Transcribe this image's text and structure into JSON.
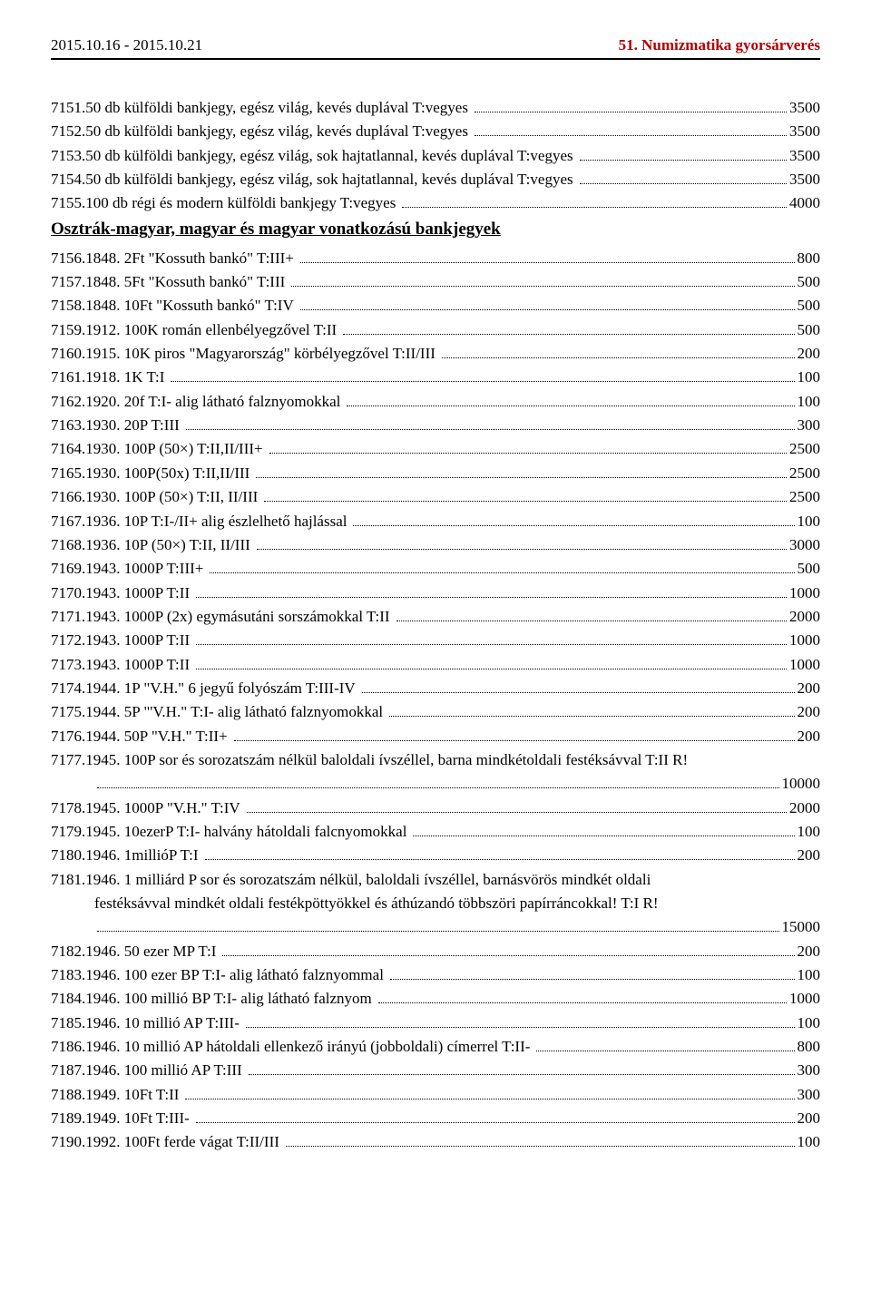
{
  "header": {
    "date_range": "2015.10.16 - 2015.10.21",
    "title": "51. Numizmatika gyorsárverés",
    "title_color": "#b00000"
  },
  "section_title": "Osztrák-magyar, magyar és magyar vonatkozású bankjegyek",
  "items_top": [
    {
      "num": "7151.",
      "desc": "50 db külföldi bankjegy, egész világ, kevés duplával T:vegyes",
      "price": "3500"
    },
    {
      "num": "7152.",
      "desc": "50 db külföldi bankjegy, egész világ, kevés duplával T:vegyes",
      "price": "3500"
    },
    {
      "num": "7153.",
      "desc": "50 db külföldi bankjegy, egész világ, sok hajtatlannal, kevés duplával T:vegyes",
      "price": "3500"
    },
    {
      "num": "7154.",
      "desc": "50 db külföldi bankjegy, egész világ, sok hajtatlannal, kevés duplával T:vegyes",
      "price": "3500"
    },
    {
      "num": "7155.",
      "desc": "100 db régi és modern külföldi bankjegy T:vegyes",
      "price": "4000"
    }
  ],
  "items_section": [
    {
      "num": "7156.",
      "desc": "1848. 2Ft \"Kossuth bankó\" T:III+",
      "price": "800"
    },
    {
      "num": "7157.",
      "desc": "1848. 5Ft \"Kossuth bankó\" T:III",
      "price": "500"
    },
    {
      "num": "7158.",
      "desc": "1848. 10Ft \"Kossuth bankó\" T:IV",
      "price": "500"
    },
    {
      "num": "7159.",
      "desc": "1912. 100K román ellenbélyegzővel T:II",
      "price": "500"
    },
    {
      "num": "7160.",
      "desc": "1915. 10K piros \"Magyarország\" körbélyegzővel T:II/III",
      "price": "200"
    },
    {
      "num": "7161.",
      "desc": "1918. 1K T:I",
      "price": "100"
    },
    {
      "num": "7162.",
      "desc": "1920. 20f T:I- alig látható falznyomokkal",
      "price": "100"
    },
    {
      "num": "7163.",
      "desc": "1930. 20P T:III",
      "price": "300"
    },
    {
      "num": "7164.",
      "desc": "1930. 100P (50×) T:II,II/III+",
      "price": "2500"
    },
    {
      "num": "7165.",
      "desc": "1930. 100P(50x) T:II,II/III",
      "price": "2500"
    },
    {
      "num": "7166.",
      "desc": "1930. 100P (50×) T:II, II/III",
      "price": "2500"
    },
    {
      "num": "7167.",
      "desc": "1936. 10P T:I-/II+ alig észlelhető hajlással",
      "price": "100"
    },
    {
      "num": "7168.",
      "desc": "1936. 10P (50×) T:II, II/III",
      "price": "3000"
    },
    {
      "num": "7169.",
      "desc": "1943. 1000P T:III+",
      "price": "500"
    },
    {
      "num": "7170.",
      "desc": "1943. 1000P T:II",
      "price": "1000"
    },
    {
      "num": "7171.",
      "desc": "1943. 1000P (2x) egymásutáni sorszámokkal T:II",
      "price": "2000"
    },
    {
      "num": "7172.",
      "desc": "1943. 1000P T:II",
      "price": "1000"
    },
    {
      "num": "7173.",
      "desc": "1943. 1000P T:II",
      "price": "1000"
    },
    {
      "num": "7174.",
      "desc": "1944. 1P \"V.H.\" 6 jegyű folyószám T:III-IV",
      "price": "200"
    },
    {
      "num": "7175.",
      "desc": "1944. 5P \"'V.H.\" T:I- alig látható falznyomokkal",
      "price": "200"
    },
    {
      "num": "7176.",
      "desc": "1944. 50P \"V.H.\" T:II+",
      "price": "200"
    },
    {
      "num": "7177.",
      "desc": "1945. 100P sor és sorozatszám nélkül baloldali ívszéllel, barna mindkétoldali festéksávval T:II R!",
      "price": "10000",
      "twoline": true
    },
    {
      "num": "7178.",
      "desc": "1945. 1000P \"V.H.\" T:IV",
      "price": "2000"
    },
    {
      "num": "7179.",
      "desc": "1945. 10ezerP T:I- halvány hátoldali falcnyomokkal",
      "price": "100"
    },
    {
      "num": "7180.",
      "desc": "1946. 1millióP T:I",
      "price": "200"
    },
    {
      "num": "7181.",
      "desc": "1946. 1 milliárd P sor és sorozatszám nélkül, baloldali ívszéllel, barnásvörös mindkét oldali",
      "note": "festéksávval mindkét oldali festékpöttyökkel és áthúzandó többszöri papírráncokkal! T:I R!",
      "price": "15000",
      "twoline": true
    },
    {
      "num": "7182.",
      "desc": "1946. 50 ezer MP T:I",
      "price": "200"
    },
    {
      "num": "7183.",
      "desc": "1946. 100 ezer BP T:I- alig látható falznyommal",
      "price": "100"
    },
    {
      "num": "7184.",
      "desc": "1946. 100 millió BP T:I- alig látható falznyom",
      "price": "1000"
    },
    {
      "num": "7185.",
      "desc": "1946. 10 millió AP T:III-",
      "price": "100"
    },
    {
      "num": "7186.",
      "desc": "1946. 10 millió AP hátoldali ellenkező irányú (jobboldali) címerrel T:II-",
      "price": "800"
    },
    {
      "num": "7187.",
      "desc": "1946. 100 millió AP T:III",
      "price": "300"
    },
    {
      "num": "7188.",
      "desc": "1949. 10Ft T:II",
      "price": "300"
    },
    {
      "num": "7189.",
      "desc": "1949. 10Ft T:III-",
      "price": "200"
    },
    {
      "num": "7190.",
      "desc": "1992. 100Ft ferde vágat T:II/III",
      "price": "100"
    }
  ]
}
